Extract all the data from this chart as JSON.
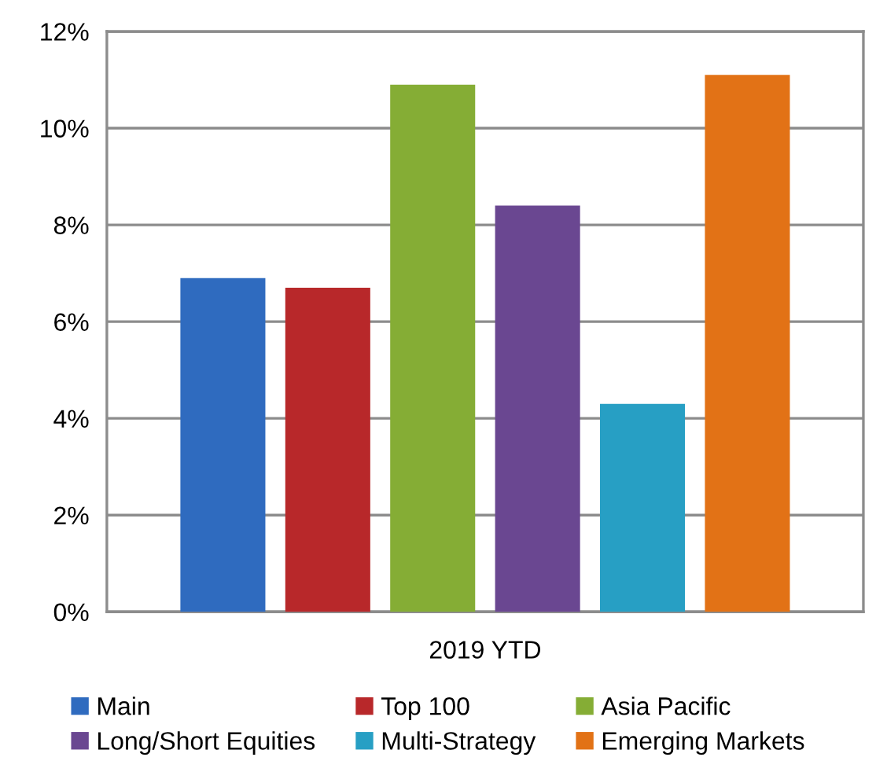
{
  "chart_data": {
    "type": "bar",
    "categories": [
      "2019 YTD"
    ],
    "series": [
      {
        "name": "Main",
        "color": "#2f6bbf",
        "values": [
          6.9
        ]
      },
      {
        "name": "Top 100",
        "color": "#b8282a",
        "values": [
          6.7
        ]
      },
      {
        "name": "Asia Pacific",
        "color": "#85ad35",
        "values": [
          10.9
        ]
      },
      {
        "name": "Long/Short Equities",
        "color": "#6a4791",
        "values": [
          8.4
        ]
      },
      {
        "name": "Multi-Strategy",
        "color": "#279fc4",
        "values": [
          4.3
        ]
      },
      {
        "name": "Emerging Markets",
        "color": "#e27216",
        "values": [
          11.1
        ]
      }
    ],
    "ylim": [
      0,
      12
    ],
    "yticks": [
      {
        "value": 0,
        "label": "0%"
      },
      {
        "value": 2,
        "label": "2%"
      },
      {
        "value": 4,
        "label": "4%"
      },
      {
        "value": 6,
        "label": "6%"
      },
      {
        "value": 8,
        "label": "8%"
      },
      {
        "value": 10,
        "label": "10%"
      },
      {
        "value": 12,
        "label": "12%"
      }
    ],
    "grid": "y",
    "legend": "bottom"
  }
}
